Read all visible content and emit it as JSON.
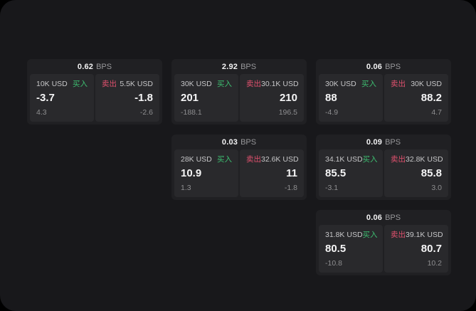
{
  "labels": {
    "bps_unit": "BPS",
    "buy": "买入",
    "sell": "卖出"
  },
  "colors": {
    "page_bg": "#000000",
    "window_bg": "#18181b",
    "card_bg": "#202023",
    "panel_bg": "#29292c",
    "buy_green": "#3dbe71",
    "sell_red": "#e1516e",
    "value_white": "#f5f5f6",
    "label_gray": "#c6c6c8",
    "sub_gray": "#8e8e90"
  },
  "cards": [
    {
      "bps": "0.62",
      "buy": {
        "amount": "10K USD",
        "value": "-3.7",
        "sub": "4.3"
      },
      "sell": {
        "amount": "5.5K USD",
        "value": "-1.8",
        "sub": "-2.6"
      }
    },
    {
      "bps": "2.92",
      "buy": {
        "amount": "30K USD",
        "value": "201",
        "sub": "-188.1"
      },
      "sell": {
        "amount": "30.1K USD",
        "value": "210",
        "sub": "196.5"
      }
    },
    {
      "bps": "0.06",
      "buy": {
        "amount": "30K USD",
        "value": "88",
        "sub": "-4.9"
      },
      "sell": {
        "amount": "30K USD",
        "value": "88.2",
        "sub": "4.7"
      }
    },
    {
      "bps": "0.03",
      "buy": {
        "amount": "28K USD",
        "value": "10.9",
        "sub": "1.3"
      },
      "sell": {
        "amount": "32.6K USD",
        "value": "11",
        "sub": "-1.8"
      }
    },
    {
      "bps": "0.09",
      "buy": {
        "amount": "34.1K USD",
        "value": "85.5",
        "sub": "-3.1"
      },
      "sell": {
        "amount": "32.8K USD",
        "value": "85.8",
        "sub": "3.0"
      }
    },
    {
      "bps": "0.06",
      "buy": {
        "amount": "31.8K USD",
        "value": "80.5",
        "sub": "-10.8"
      },
      "sell": {
        "amount": "39.1K USD",
        "value": "80.7",
        "sub": "10.2"
      }
    }
  ]
}
